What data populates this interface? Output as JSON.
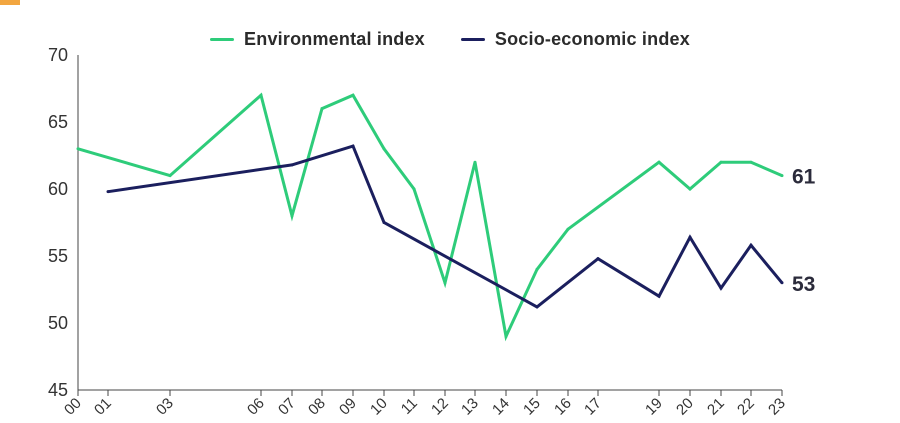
{
  "chart_data": {
    "type": "line",
    "title": "",
    "xlabel": "",
    "ylabel": "",
    "ylim": [
      45,
      70
    ],
    "yticks": [
      45,
      50,
      55,
      60,
      65,
      70
    ],
    "grid": false,
    "legend_position": "top-center",
    "x_tick_labels": [
      "00",
      "01",
      "03",
      "06",
      "07",
      "08",
      "09",
      "10",
      "11",
      "12",
      "13",
      "14",
      "15",
      "16",
      "17",
      "19",
      "20",
      "21",
      "22",
      "23"
    ],
    "series": [
      {
        "name": "Environmental index",
        "color": "#2ecc7a",
        "end_label": "61",
        "points": [
          {
            "x": "2000",
            "y": 63
          },
          {
            "x": "2003",
            "y": 61
          },
          {
            "x": "2006",
            "y": 67
          },
          {
            "x": "2007",
            "y": 58
          },
          {
            "x": "2008",
            "y": 66
          },
          {
            "x": "2009",
            "y": 67
          },
          {
            "x": "2010",
            "y": 63
          },
          {
            "x": "2011",
            "y": 60
          },
          {
            "x": "2012",
            "y": 53
          },
          {
            "x": "2013",
            "y": 62
          },
          {
            "x": "2014",
            "y": 49
          },
          {
            "x": "2015",
            "y": 54
          },
          {
            "x": "2016",
            "y": 57
          },
          {
            "x": "2019",
            "y": 62
          },
          {
            "x": "2020",
            "y": 60
          },
          {
            "x": "2021",
            "y": 62
          },
          {
            "x": "2022",
            "y": 62
          },
          {
            "x": "2023",
            "y": 61
          }
        ]
      },
      {
        "name": "Socio-economic index",
        "color": "#1b1f5e",
        "end_label": "53",
        "points": [
          {
            "x": "2001",
            "y": 59.8
          },
          {
            "x": "2007",
            "y": 61.8
          },
          {
            "x": "2009",
            "y": 63.2
          },
          {
            "x": "2010",
            "y": 57.5
          },
          {
            "x": "2015",
            "y": 51.2
          },
          {
            "x": "2017",
            "y": 54.8
          },
          {
            "x": "2019",
            "y": 52
          },
          {
            "x": "2020",
            "y": 56.4
          },
          {
            "x": "2021",
            "y": 52.6
          },
          {
            "x": "2022",
            "y": 55.8
          },
          {
            "x": "2023",
            "y": 53
          }
        ]
      }
    ]
  }
}
